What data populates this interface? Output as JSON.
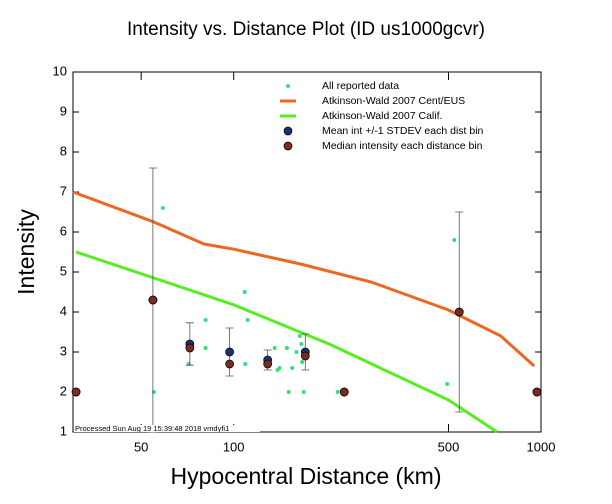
{
  "chart_data": {
    "type": "scatter",
    "title": "Intensity vs. Distance Plot (ID us1000gcvr)",
    "x_label": "Hypocentral Distance (km)",
    "y_label": "Intensity",
    "annotation": "Processed Sun Aug 19 15:39:48 2018 vmdyfi1",
    "x_scale": "log",
    "xlim": [
      30,
      1000
    ],
    "xticks": [
      50,
      100,
      500,
      1000
    ],
    "ylim": [
      1,
      10
    ],
    "yticks": [
      1,
      2,
      3,
      4,
      5,
      6,
      7,
      8,
      9,
      10
    ],
    "legend": "top-right",
    "series": [
      {
        "name": "All reported data",
        "mode": "markers",
        "color": "#33e07a",
        "x": [
          58.8,
          55,
          71.4,
          81,
          81,
          108.6,
          111,
          109,
          136,
          139,
          141,
          149,
          151,
          155,
          160,
          164,
          166,
          167,
          169,
          218,
          495,
          522
        ],
        "values": [
          6.6,
          2.0,
          2.7,
          3.8,
          3.1,
          4.5,
          3.8,
          2.7,
          3.1,
          2.55,
          2.6,
          3.1,
          2.0,
          2.6,
          3.0,
          3.4,
          3.2,
          2.75,
          2.0,
          2.0,
          2.2,
          5.8
        ]
      },
      {
        "name": "Atkinson-Wald 2007 Cent/EUS",
        "mode": "line",
        "color": "#ee6622",
        "x": [
          30,
          55,
          80,
          100,
          165,
          280,
          500,
          740,
          950
        ],
        "values": [
          7.0,
          6.25,
          5.7,
          5.57,
          5.2,
          4.75,
          4.05,
          3.4,
          2.65
        ]
      },
      {
        "name": "Atkinson-Wald 2007 Calif.",
        "mode": "line",
        "color": "#55ee22",
        "x": [
          30.7,
          55,
          100,
          207,
          500,
          720
        ],
        "values": [
          5.5,
          4.85,
          4.18,
          3.18,
          1.8,
          1.0
        ]
      },
      {
        "name": "Mean int +/-1 STDEV each dist bin",
        "mode": "errorbar",
        "color": "#1f2f70",
        "x": [
          30.7,
          54.6,
          72,
          97,
          129,
          171,
          229,
          542,
          970
        ],
        "values": [
          2.0,
          4.3,
          3.2,
          3.0,
          2.8,
          3.0,
          2.0,
          4.0,
          2.0
        ],
        "errors": [
          0,
          3.3,
          0.53,
          0.6,
          0.25,
          0.45,
          0,
          2.5,
          0
        ]
      },
      {
        "name": "Median intensity each distance bin",
        "mode": "circles",
        "color": "#7a2a22",
        "x": [
          30.7,
          54.6,
          72,
          97,
          129,
          171,
          229,
          542,
          970
        ],
        "values": [
          2.0,
          4.3,
          3.1,
          2.7,
          2.7,
          2.9,
          2.0,
          4.0,
          2.0
        ]
      }
    ]
  }
}
